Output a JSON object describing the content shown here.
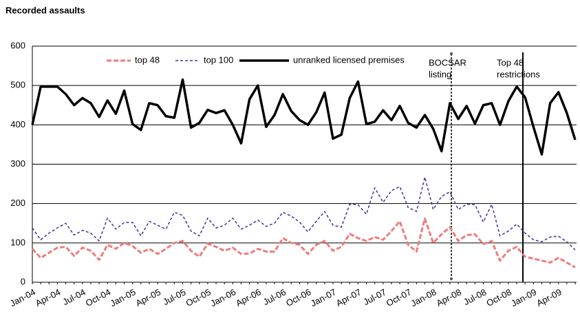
{
  "chart_data": {
    "type": "line",
    "title": "Recorded assaults",
    "categories": [
      "Jan-04",
      null,
      null,
      "Apr-04",
      null,
      null,
      "Jul-04",
      null,
      null,
      "Oct-04",
      null,
      null,
      "Jan-05",
      null,
      null,
      "Apr-05",
      null,
      null,
      "Jul-05",
      null,
      null,
      "Oct-05",
      null,
      null,
      "Jan-06",
      null,
      null,
      "Apr-06",
      null,
      null,
      "Jul-06",
      null,
      null,
      "Oct-06",
      null,
      null,
      "Jan-07",
      null,
      null,
      "Apr-07",
      null,
      null,
      "Jul-07",
      null,
      null,
      "Oct-07",
      null,
      null,
      "Jan-08",
      null,
      null,
      "Apr-08",
      null,
      null,
      "Jul-08",
      null,
      null,
      "Oct-08",
      null,
      null,
      "Jan-09",
      null,
      null,
      "Apr-09",
      null,
      null
    ],
    "series": [
      {
        "name": "top 48",
        "color": "#f07b7b",
        "values": [
          85,
          62,
          75,
          88,
          90,
          67,
          88,
          80,
          57,
          95,
          85,
          100,
          92,
          75,
          85,
          72,
          85,
          100,
          105,
          80,
          65,
          98,
          90,
          80,
          88,
          72,
          73,
          85,
          78,
          78,
          112,
          100,
          95,
          72,
          95,
          105,
          80,
          90,
          123,
          112,
          105,
          115,
          108,
          130,
          155,
          95,
          78,
          162,
          100,
          122,
          140,
          105,
          120,
          122,
          97,
          105,
          55,
          80,
          90,
          65,
          60,
          55,
          50,
          62,
          50,
          38
        ]
      },
      {
        "name": "top 100",
        "color": "#4b2d9a",
        "values": [
          138,
          108,
          125,
          138,
          150,
          120,
          132,
          125,
          105,
          163,
          135,
          152,
          152,
          118,
          155,
          145,
          135,
          178,
          170,
          130,
          118,
          163,
          138,
          145,
          163,
          135,
          145,
          158,
          142,
          150,
          178,
          168,
          153,
          128,
          155,
          180,
          145,
          140,
          198,
          197,
          173,
          240,
          203,
          233,
          243,
          190,
          180,
          267,
          185,
          218,
          230,
          185,
          198,
          197,
          153,
          198,
          118,
          130,
          148,
          125,
          108,
          103,
          115,
          117,
          103,
          82
        ]
      },
      {
        "name": "unranked licensed premises",
        "color": "#000000",
        "values": [
          400,
          497,
          497,
          497,
          478,
          450,
          468,
          455,
          420,
          462,
          428,
          487,
          402,
          387,
          455,
          450,
          422,
          418,
          515,
          393,
          405,
          438,
          430,
          437,
          400,
          353,
          465,
          500,
          395,
          425,
          478,
          435,
          412,
          400,
          432,
          482,
          365,
          375,
          468,
          510,
          402,
          408,
          437,
          412,
          448,
          405,
          393,
          425,
          390,
          333,
          455,
          415,
          448,
          403,
          450,
          455,
          400,
          460,
          497,
          470,
          395,
          325,
          455,
          483,
          430,
          362
        ]
      }
    ],
    "ylim": [
      0,
      600
    ],
    "yticks": [
      0,
      100,
      200,
      300,
      400,
      500,
      600
    ],
    "grid": true,
    "annotations": [
      {
        "lines": [
          "BOCSAR",
          "listing"
        ]
      },
      {
        "lines": [
          "Top 48",
          "restrictions"
        ]
      }
    ]
  }
}
